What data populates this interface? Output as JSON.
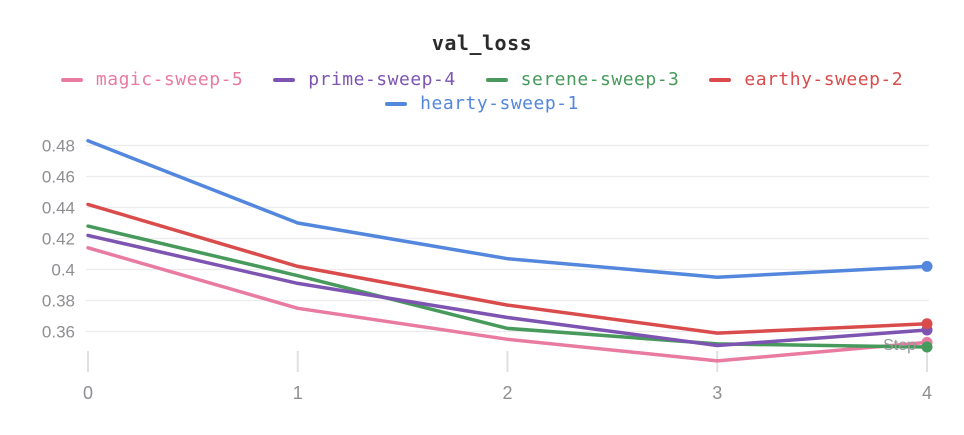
{
  "page": {
    "background": "#ffffff"
  },
  "chart_data": {
    "type": "line",
    "title": "val_loss",
    "xlabel": "Step",
    "x": [
      0,
      1,
      2,
      3,
      4
    ],
    "xtick_labels": [
      "0",
      "1",
      "2",
      "3",
      "4"
    ],
    "yticks": [
      0.48,
      0.46,
      0.44,
      0.42,
      0.4,
      0.38,
      0.36
    ],
    "ytick_labels": [
      "0.48",
      "0.46",
      "0.44",
      "0.42",
      "0.4",
      "0.38",
      "0.36"
    ],
    "ylim": [
      0.335,
      0.487
    ],
    "grid": "horizontal-only",
    "legend_position": "top",
    "end_point_markers": true,
    "series": [
      {
        "name": "magic-sweep-5",
        "color": "#E87B9F",
        "values": [
          0.414,
          0.375,
          0.355,
          0.341,
          0.353
        ]
      },
      {
        "name": "prime-sweep-4",
        "color": "#7D54B2",
        "values": [
          0.422,
          0.391,
          0.369,
          0.351,
          0.361
        ]
      },
      {
        "name": "serene-sweep-3",
        "color": "#479A5B",
        "values": [
          0.428,
          0.396,
          0.362,
          0.352,
          0.35
        ]
      },
      {
        "name": "earthy-sweep-2",
        "color": "#DA4C4C",
        "values": [
          0.442,
          0.402,
          0.377,
          0.359,
          0.365
        ]
      },
      {
        "name": "hearty-sweep-1",
        "color": "#5387DD",
        "values": [
          0.483,
          0.43,
          0.407,
          0.395,
          0.402
        ]
      }
    ],
    "axis_colors": {
      "tick_label": "#8E8E93",
      "grid_line": "#ECECEE",
      "tick_mark": "#E0E0E3",
      "axis_title": "#97979C"
    }
  }
}
